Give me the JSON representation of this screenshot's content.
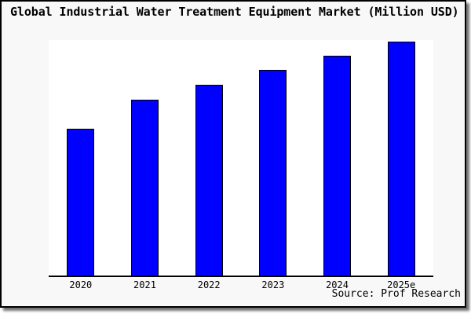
{
  "title": "Global Industrial Water Treatment Equipment Market (Million USD)",
  "source_credit": "Source: Prof Research",
  "colors": {
    "figure_background": "#f8f8f8",
    "plot_background": "#ffffff",
    "bar_fill": "#0000ff",
    "bar_border": "#000000",
    "axis_line": "#000000",
    "frame_border": "#000000",
    "text": "#000000"
  },
  "chart_data": {
    "type": "bar",
    "title": "Global Industrial Water Treatment Equipment Market (Million USD)",
    "categories": [
      "2020",
      "2021",
      "2022",
      "2023",
      "2024",
      "2025e"
    ],
    "values": [
      187,
      224,
      243,
      262,
      280,
      298
    ],
    "value_note": "No y-axis scale, gridlines or data labels are shown; values are relative bar heights (pixels) measured from the axis baseline",
    "xlabel": "",
    "ylabel": "",
    "ylim": [
      0,
      300
    ],
    "grid": false,
    "legend": false,
    "bar_color": "#0000ff",
    "source": "Source: Prof Research"
  }
}
